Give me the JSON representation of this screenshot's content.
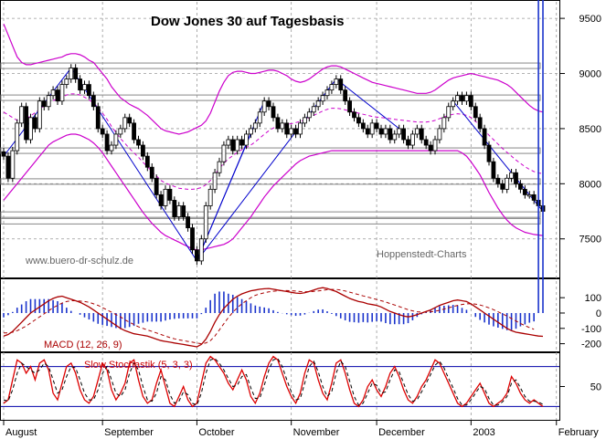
{
  "chart_data": [
    {
      "type": "candlestick",
      "title": "Dow Jones 30 auf Tagesbasis",
      "watermark_left": "www.buero-dr-schulz.de",
      "watermark_right": "Hoppenstedt-Charts",
      "y_ticks": [
        "9500",
        "9000",
        "8500",
        "8000",
        "7500"
      ],
      "y_tick_values": [
        9500,
        9000,
        8500,
        8000,
        7500
      ],
      "ylim": [
        7150,
        9650
      ],
      "x_labels": [
        "August",
        "September",
        "October",
        "November",
        "December",
        "2003",
        "February"
      ],
      "x_label_index": [
        0,
        22,
        43,
        64,
        83,
        104,
        123
      ],
      "series": [
        {
          "name": "close",
          "values": [
            8250,
            8050,
            8300,
            8550,
            8700,
            8400,
            8600,
            8500,
            8750,
            8700,
            8800,
            8850,
            8750,
            8900,
            8950,
            9050,
            8950,
            8850,
            8900,
            8800,
            8700,
            8500,
            8450,
            8300,
            8350,
            8450,
            8500,
            8600,
            8550,
            8400,
            8350,
            8250,
            8150,
            8050,
            7900,
            7800,
            7950,
            7850,
            7700,
            7800,
            7700,
            7600,
            7400,
            7300,
            7500,
            7800,
            7950,
            8100,
            8200,
            8350,
            8400,
            8300,
            8400,
            8350,
            8450,
            8500,
            8550,
            8650,
            8750,
            8700,
            8600,
            8500,
            8550,
            8450,
            8500,
            8450,
            8550,
            8600,
            8650,
            8700,
            8750,
            8800,
            8850,
            8900,
            8950,
            8850,
            8750,
            8650,
            8600,
            8550,
            8500,
            8450,
            8550,
            8500,
            8450,
            8500,
            8400,
            8450,
            8500,
            8400,
            8350,
            8450,
            8500,
            8400,
            8350,
            8300,
            8400,
            8500,
            8600,
            8700,
            8750,
            8800,
            8750,
            8800,
            8700,
            8600,
            8500,
            8350,
            8200,
            8050,
            8000,
            7950,
            8050,
            8100,
            8000,
            7950,
            7900,
            7900,
            7850,
            7800,
            7750
          ]
        },
        {
          "name": "macd",
          "values": [
            -150,
            -140,
            -120,
            -90,
            -60,
            -30,
            0,
            20,
            40,
            60,
            80,
            95,
            105,
            110,
            100,
            90,
            80,
            70,
            55,
            40,
            20,
            0,
            -20,
            -40,
            -60,
            -80,
            -100,
            -115,
            -125,
            -135,
            -140,
            -145,
            -150,
            -160,
            -170,
            -180,
            -185,
            -190,
            -195,
            -200,
            -205,
            -210,
            -215,
            -220,
            -205,
            -170,
            -120,
            -60,
            -10,
            30,
            60,
            90,
            110,
            125,
            135,
            145,
            150,
            155,
            158,
            160,
            155,
            150,
            145,
            140,
            135,
            130,
            128,
            132,
            140,
            150,
            160,
            165,
            160,
            150,
            140,
            125,
            110,
            95,
            85,
            75,
            70,
            60,
            55,
            50,
            40,
            25,
            10,
            0,
            -10,
            -20,
            -25,
            -20,
            -10,
            0,
            10,
            20,
            35,
            50,
            60,
            70,
            80,
            85,
            80,
            75,
            60,
            40,
            20,
            0,
            -20,
            -40,
            -60,
            -80,
            -100,
            -115,
            -125,
            -130,
            -135,
            -140,
            -145,
            -150,
            -152
          ]
        },
        {
          "name": "macd_signal",
          "values": [
            -130,
            -130,
            -125,
            -115,
            -100,
            -85,
            -65,
            -45,
            -25,
            -5,
            15,
            35,
            50,
            65,
            75,
            80,
            80,
            78,
            75,
            70,
            60,
            50,
            35,
            20,
            5,
            -10,
            -25,
            -45,
            -60,
            -75,
            -90,
            -100,
            -110,
            -120,
            -130,
            -140,
            -150,
            -160,
            -168,
            -175,
            -180,
            -185,
            -190,
            -195,
            -200,
            -195,
            -180,
            -150,
            -110,
            -70,
            -30,
            5,
            35,
            60,
            80,
            100,
            115,
            125,
            132,
            138,
            142,
            145,
            146,
            146,
            145,
            143,
            140,
            139,
            139,
            141,
            144,
            148,
            152,
            154,
            154,
            150,
            144,
            136,
            128,
            120,
            112,
            104,
            96,
            88,
            80,
            72,
            62,
            52,
            42,
            32,
            22,
            14,
            8,
            6,
            6,
            8,
            12,
            18,
            26,
            34,
            42,
            50,
            56,
            60,
            60,
            58,
            52,
            44,
            34,
            22,
            8,
            -6,
            -20,
            -36,
            -52,
            -68,
            -82,
            -95,
            -106
          ]
        },
        {
          "name": "slow_stochastic",
          "values": [
            25,
            30,
            60,
            90,
            85,
            70,
            80,
            60,
            85,
            90,
            75,
            40,
            30,
            55,
            80,
            85,
            70,
            45,
            30,
            25,
            35,
            60,
            85,
            75,
            45,
            30,
            40,
            55,
            85,
            90,
            60,
            35,
            25,
            30,
            55,
            75,
            50,
            25,
            20,
            35,
            50,
            30,
            20,
            25,
            55,
            85,
            95,
            90,
            80,
            70,
            55,
            45,
            60,
            75,
            60,
            35,
            25,
            40,
            65,
            85,
            95,
            90,
            70,
            50,
            35,
            25,
            40,
            70,
            90,
            85,
            60,
            40,
            30,
            55,
            85,
            90,
            70,
            45,
            25,
            20,
            30,
            50,
            60,
            45,
            35,
            50,
            70,
            80,
            65,
            45,
            30,
            25,
            35,
            50,
            60,
            75,
            90,
            85,
            70,
            55,
            40,
            25,
            20,
            25,
            35,
            45,
            55,
            40,
            25,
            20,
            25,
            30,
            40,
            65,
            55,
            40,
            30,
            25,
            30,
            25,
            20
          ]
        },
        {
          "name": "stochastic_signal",
          "values": [
            30,
            28,
            45,
            70,
            85,
            80,
            75,
            70,
            75,
            85,
            80,
            60,
            40,
            45,
            65,
            80,
            78,
            60,
            40,
            30,
            30,
            45,
            70,
            80,
            60,
            40,
            35,
            45,
            70,
            85,
            75,
            50,
            30,
            28,
            40,
            65,
            60,
            38,
            25,
            28,
            42,
            38,
            25,
            22,
            40,
            70,
            90,
            92,
            85,
            75,
            62,
            50,
            52,
            65,
            68,
            48,
            32,
            33,
            52,
            75,
            90,
            92,
            80,
            60,
            42,
            30,
            32,
            55,
            80,
            88,
            72,
            50,
            35,
            42,
            70,
            88,
            80,
            58,
            35,
            22,
            25,
            40,
            55,
            52,
            40,
            42,
            60,
            75,
            72,
            55,
            38,
            28,
            30,
            42,
            55,
            68,
            82,
            88,
            78,
            62,
            48,
            32,
            22,
            22,
            30,
            40,
            50,
            47,
            32,
            22,
            22,
            27,
            35,
            55,
            60,
            48,
            35,
            28,
            28,
            27,
            23
          ]
        },
        {
          "name": "bollinger_upper",
          "values": [
            9450,
            9350,
            9250,
            9150,
            9100,
            9080,
            9080,
            9090,
            9100,
            9110,
            9120,
            9130,
            9140,
            9150,
            9170,
            9180,
            9180,
            9170,
            9150,
            9120,
            9100,
            9050,
            9000,
            8950,
            8880,
            8830,
            8780,
            8750,
            8720,
            8700,
            8680,
            8650,
            8620,
            8580,
            8540,
            8500,
            8480,
            8470,
            8460,
            8450,
            8460,
            8470,
            8490,
            8510,
            8530,
            8570,
            8640,
            8740,
            8840,
            8920,
            8980,
            9010,
            9020,
            9020,
            9010,
            9000,
            9000,
            9010,
            9020,
            9030,
            9030,
            9020,
            9000,
            8980,
            8950,
            8930,
            8920,
            8930,
            8950,
            8980,
            9010,
            9040,
            9060,
            9070,
            9070,
            9060,
            9040,
            9020,
            9000,
            8980,
            8960,
            8940,
            8920,
            8910,
            8900,
            8890,
            8880,
            8870,
            8860,
            8850,
            8840,
            8830,
            8820,
            8820,
            8820,
            8830,
            8850,
            8880,
            8910,
            8940,
            8960,
            8970,
            8980,
            8990,
            9000,
            8990,
            8980,
            8970,
            8960,
            8950,
            8940,
            8920,
            8900,
            8870,
            8830,
            8790,
            8750,
            8710,
            8680,
            8660,
            8650
          ]
        },
        {
          "name": "bollinger_lower",
          "values": [
            7850,
            7900,
            7950,
            8000,
            8050,
            8100,
            8150,
            8200,
            8250,
            8300,
            8350,
            8380,
            8400,
            8420,
            8440,
            8450,
            8450,
            8440,
            8420,
            8400,
            8370,
            8330,
            8280,
            8220,
            8160,
            8100,
            8040,
            7980,
            7920,
            7860,
            7800,
            7740,
            7690,
            7640,
            7600,
            7560,
            7530,
            7510,
            7490,
            7470,
            7450,
            7430,
            7410,
            7400,
            7400,
            7410,
            7420,
            7430,
            7440,
            7450,
            7470,
            7500,
            7550,
            7600,
            7650,
            7700,
            7760,
            7820,
            7880,
            7930,
            7980,
            8020,
            8060,
            8100,
            8140,
            8180,
            8210,
            8230,
            8250,
            8260,
            8270,
            8280,
            8290,
            8300,
            8300,
            8300,
            8300,
            8300,
            8300,
            8300,
            8300,
            8300,
            8300,
            8300,
            8300,
            8300,
            8300,
            8300,
            8300,
            8300,
            8300,
            8300,
            8300,
            8300,
            8300,
            8300,
            8300,
            8300,
            8300,
            8300,
            8300,
            8300,
            8280,
            8250,
            8200,
            8140,
            8080,
            8000,
            7920,
            7850,
            7780,
            7720,
            7670,
            7630,
            7600,
            7580,
            7560,
            7550,
            7540,
            7535,
            7530
          ]
        }
      ],
      "horizontal_levels": [
        9070,
        8780,
        8300,
        8020,
        7720,
        7660
      ]
    },
    {
      "type": "line",
      "title": "MACD (12, 26, 9)",
      "y_ticks": [
        "100",
        "0",
        "-100",
        "-200"
      ],
      "y_tick_values": [
        100,
        0,
        -100,
        -200
      ],
      "ylim": [
        -250,
        220
      ]
    },
    {
      "type": "line",
      "title": "Slow Stochastik (5, 3, 3)",
      "y_ticks": [
        "50"
      ],
      "y_tick_values": [
        50
      ],
      "ylim": [
        0,
        100
      ],
      "levels": [
        80,
        20
      ]
    }
  ]
}
